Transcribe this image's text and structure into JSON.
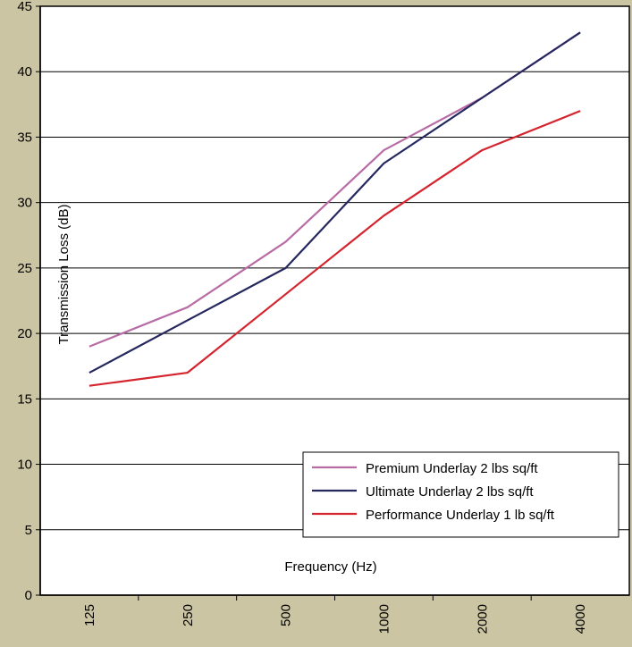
{
  "chart_data": {
    "type": "line",
    "title": "",
    "xlabel": "Frequency (Hz)",
    "ylabel": "Transmission Loss (dB)",
    "categories": [
      "125",
      "250",
      "500",
      "1000",
      "2000",
      "4000"
    ],
    "ylim": [
      0,
      45
    ],
    "yticks": [
      "0",
      "5",
      "10",
      "15",
      "20",
      "25",
      "30",
      "35",
      "40",
      "45"
    ],
    "grid": true,
    "legend_position": "bottom-right",
    "series": [
      {
        "name": "Premium Underlay 2 lbs sq/ft",
        "color": "#b86ba5",
        "values": [
          19,
          22,
          27,
          34,
          38,
          43
        ]
      },
      {
        "name": "Ultimate Underlay 2 lbs sq/ft",
        "color": "#25285f",
        "values": [
          17,
          21,
          25,
          33,
          38,
          43
        ]
      },
      {
        "name": "Performance Underlay 1 lb sq/ft",
        "color": "#d4242e",
        "values": [
          16,
          17,
          23,
          29,
          34,
          37
        ]
      }
    ],
    "background_color": "#ccc5a3",
    "plot_background": "#ffffff"
  }
}
